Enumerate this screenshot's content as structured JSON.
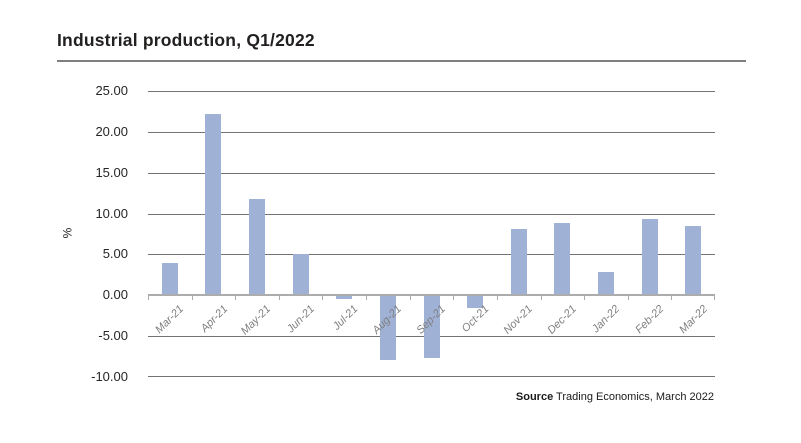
{
  "title": "Industrial production, Q1/2022",
  "source": {
    "label": "Source",
    "text": " Trading Economics, March 2022"
  },
  "chart_data": {
    "type": "bar",
    "title": "Industrial production, Q1/2022",
    "categories": [
      "Mar-21",
      "Apr-21",
      "May-21",
      "Jun-21",
      "Jul-21",
      "Aug-21",
      "Sep-21",
      "Oct-21",
      "Nov-21",
      "Dec-21",
      "Jan-22",
      "Feb-22",
      "Mar-22"
    ],
    "values": [
      3.9,
      22.2,
      11.8,
      5.0,
      -0.3,
      -7.8,
      -7.5,
      -1.4,
      8.1,
      8.8,
      2.8,
      9.3,
      8.5
    ],
    "xlabel": "",
    "ylabel": "%",
    "ylim": [
      -10,
      25
    ],
    "ytick_values": [
      25,
      20,
      15,
      10,
      5,
      0,
      -5,
      -10
    ],
    "ytick_labels": [
      "25.00",
      "20.00",
      "15.00",
      "10.00",
      "5.00",
      "0.00",
      "-5.00",
      "-10.00"
    ],
    "grid": true,
    "legend_position": "none",
    "colors": {
      "bar": "#9fb1d4",
      "gridline": "#737373",
      "axis": "#acacac",
      "x_label": "#7f7f7f"
    }
  }
}
